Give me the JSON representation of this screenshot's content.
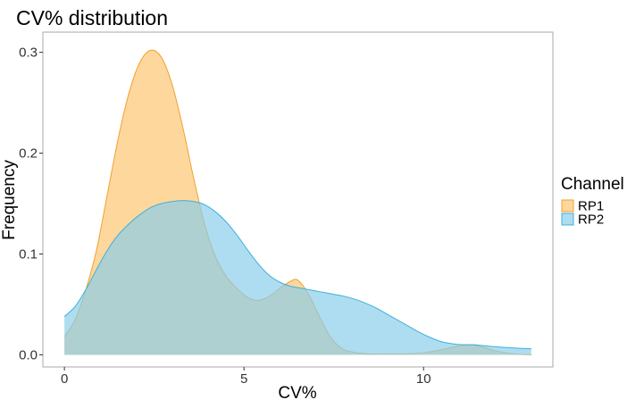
{
  "chart_data": {
    "type": "area",
    "title": "CV% distribution",
    "xlabel": "CV%",
    "ylabel": "Frequency",
    "xlim": [
      -0.6,
      13.6
    ],
    "ylim": [
      -0.012,
      0.32
    ],
    "xticks": [
      0,
      5,
      10
    ],
    "xtick_labels": [
      "0",
      "5",
      "10"
    ],
    "yticks": [
      0.0,
      0.1,
      0.2,
      0.3
    ],
    "ytick_labels": [
      "0.0",
      "0.1",
      "0.2",
      "0.3"
    ],
    "grid": false,
    "legend": {
      "title": "Channel",
      "position": "right"
    },
    "series": [
      {
        "name": "RP1",
        "fill": "#FDC46E",
        "stroke": "#F0A030",
        "points": [
          [
            0.0,
            0.018
          ],
          [
            0.3,
            0.035
          ],
          [
            0.6,
            0.065
          ],
          [
            0.9,
            0.105
          ],
          [
            1.2,
            0.16
          ],
          [
            1.5,
            0.215
          ],
          [
            1.8,
            0.26
          ],
          [
            2.1,
            0.29
          ],
          [
            2.4,
            0.302
          ],
          [
            2.7,
            0.295
          ],
          [
            3.0,
            0.268
          ],
          [
            3.3,
            0.225
          ],
          [
            3.6,
            0.175
          ],
          [
            3.9,
            0.13
          ],
          [
            4.2,
            0.098
          ],
          [
            4.5,
            0.078
          ],
          [
            4.8,
            0.066
          ],
          [
            5.1,
            0.057
          ],
          [
            5.4,
            0.054
          ],
          [
            5.7,
            0.058
          ],
          [
            6.0,
            0.066
          ],
          [
            6.3,
            0.073
          ],
          [
            6.5,
            0.074
          ],
          [
            6.8,
            0.06
          ],
          [
            7.1,
            0.038
          ],
          [
            7.4,
            0.018
          ],
          [
            7.7,
            0.007
          ],
          [
            8.0,
            0.003
          ],
          [
            8.5,
            0.001
          ],
          [
            9.0,
            0.001
          ],
          [
            9.5,
            0.001
          ],
          [
            10.0,
            0.002
          ],
          [
            10.5,
            0.005
          ],
          [
            11.0,
            0.009
          ],
          [
            11.3,
            0.01
          ],
          [
            11.6,
            0.008
          ],
          [
            12.0,
            0.004
          ],
          [
            12.5,
            0.001
          ],
          [
            13.0,
            0.0
          ]
        ]
      },
      {
        "name": "RP2",
        "fill": "#87CDEB",
        "stroke": "#3DB0DC",
        "points": [
          [
            0.0,
            0.038
          ],
          [
            0.3,
            0.048
          ],
          [
            0.6,
            0.065
          ],
          [
            0.9,
            0.085
          ],
          [
            1.2,
            0.104
          ],
          [
            1.5,
            0.119
          ],
          [
            1.8,
            0.13
          ],
          [
            2.1,
            0.139
          ],
          [
            2.4,
            0.146
          ],
          [
            2.7,
            0.15
          ],
          [
            3.0,
            0.152
          ],
          [
            3.3,
            0.153
          ],
          [
            3.6,
            0.152
          ],
          [
            3.9,
            0.149
          ],
          [
            4.2,
            0.142
          ],
          [
            4.5,
            0.132
          ],
          [
            4.8,
            0.119
          ],
          [
            5.1,
            0.104
          ],
          [
            5.4,
            0.09
          ],
          [
            5.7,
            0.079
          ],
          [
            6.0,
            0.072
          ],
          [
            6.3,
            0.068
          ],
          [
            6.6,
            0.066
          ],
          [
            6.9,
            0.064
          ],
          [
            7.2,
            0.062
          ],
          [
            7.5,
            0.06
          ],
          [
            7.8,
            0.058
          ],
          [
            8.1,
            0.055
          ],
          [
            8.4,
            0.051
          ],
          [
            8.7,
            0.046
          ],
          [
            9.0,
            0.04
          ],
          [
            9.3,
            0.034
          ],
          [
            9.6,
            0.028
          ],
          [
            9.9,
            0.022
          ],
          [
            10.2,
            0.017
          ],
          [
            10.5,
            0.013
          ],
          [
            10.8,
            0.011
          ],
          [
            11.1,
            0.01
          ],
          [
            11.4,
            0.01
          ],
          [
            11.7,
            0.009
          ],
          [
            12.0,
            0.008
          ],
          [
            12.4,
            0.007
          ],
          [
            13.0,
            0.006
          ]
        ]
      }
    ]
  }
}
